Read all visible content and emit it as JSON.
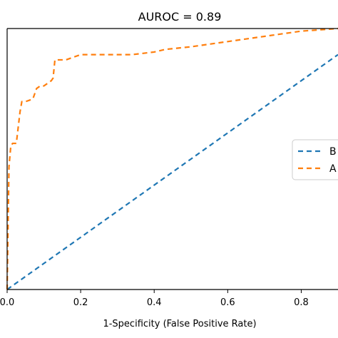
{
  "chart_data": {
    "type": "line",
    "title": "AUROC = 0.89",
    "xlabel": "1-Specificity (False Positive Rate)",
    "ylabel": "",
    "xlim": [
      0,
      0.9
    ],
    "ylim": [
      0,
      1
    ],
    "xticks": [
      0.0,
      0.2,
      0.4,
      0.6,
      0.8
    ],
    "xtick_labels": [
      "0.0",
      "0.2",
      "0.4",
      "0.6",
      "0.8"
    ],
    "grid": false,
    "legend": {
      "placement": "right",
      "entries": [
        "B",
        "A"
      ]
    },
    "series": [
      {
        "name": "B",
        "color": "#1f77b4",
        "style": "dashed",
        "x": [
          0.0,
          0.9
        ],
        "y": [
          0.0,
          0.9
        ]
      },
      {
        "name": "A",
        "color": "#ff7f0e",
        "style": "dashed",
        "x": [
          0.0,
          0.005,
          0.01,
          0.015,
          0.025,
          0.035,
          0.04,
          0.05,
          0.07,
          0.08,
          0.09,
          0.1,
          0.12,
          0.125,
          0.13,
          0.15,
          0.16,
          0.18,
          0.2,
          0.34,
          0.4,
          0.43,
          0.5,
          0.6,
          0.7,
          0.8,
          0.9
        ],
        "y": [
          0.0,
          0.47,
          0.55,
          0.56,
          0.56,
          0.68,
          0.72,
          0.72,
          0.73,
          0.77,
          0.78,
          0.78,
          0.8,
          0.81,
          0.88,
          0.88,
          0.88,
          0.89,
          0.9,
          0.9,
          0.91,
          0.92,
          0.93,
          0.95,
          0.97,
          0.99,
          1.0
        ]
      }
    ]
  }
}
